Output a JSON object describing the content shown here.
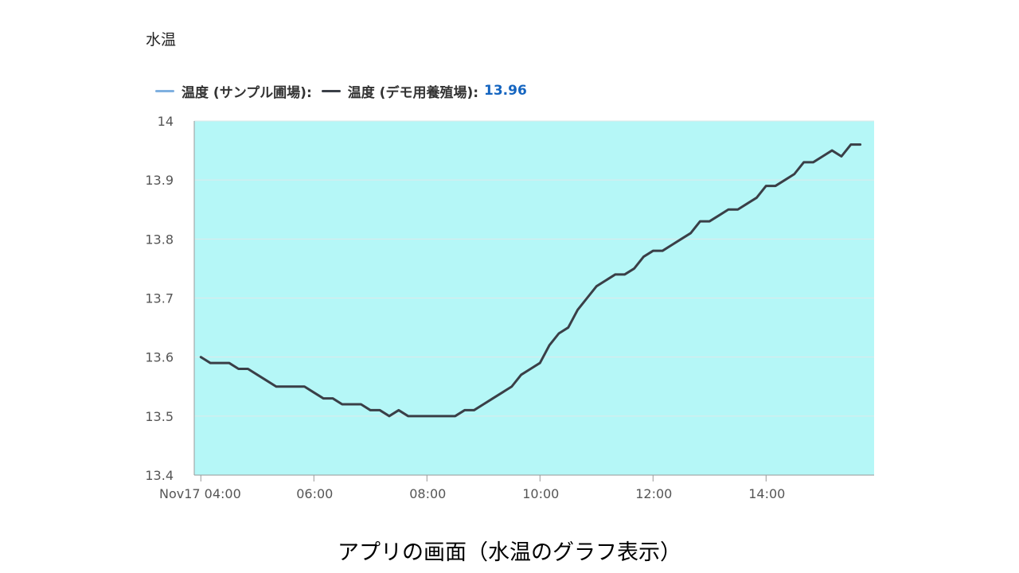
{
  "panel": {
    "title": "水温"
  },
  "legend": {
    "items": [
      {
        "label": "温度 (サンプル圃場):",
        "color": "#7fb0e0"
      },
      {
        "label": "温度 (デモ用養殖場):",
        "color": "#3a3f47",
        "value": "13.96",
        "value_color": "#1565c0"
      }
    ]
  },
  "caption": "アプリの画面（水温のグラフ表示）",
  "chart_data": {
    "type": "line",
    "plot_background": "#b5f7f7",
    "grid": true,
    "legend_position": "top-left",
    "x_start": "04:00",
    "x_end": "15:55",
    "x_ticks": [
      {
        "t": "04:00",
        "label": "Nov17 04:00"
      },
      {
        "t": "06:00",
        "label": "06:00"
      },
      {
        "t": "08:00",
        "label": "08:00"
      },
      {
        "t": "10:00",
        "label": "10:00"
      },
      {
        "t": "12:00",
        "label": "12:00"
      },
      {
        "t": "14:00",
        "label": "14:00"
      }
    ],
    "ylim": [
      13.4,
      14
    ],
    "y_ticks": [
      "13.4",
      "13.5",
      "13.6",
      "13.7",
      "13.8",
      "13.9",
      "14"
    ],
    "series": [
      {
        "name": "温度 (デモ用養殖場)",
        "color": "#3a3f47",
        "points": [
          [
            "04:00",
            13.6
          ],
          [
            "04:10",
            13.59
          ],
          [
            "04:20",
            13.59
          ],
          [
            "04:30",
            13.59
          ],
          [
            "04:40",
            13.58
          ],
          [
            "04:50",
            13.58
          ],
          [
            "05:00",
            13.57
          ],
          [
            "05:10",
            13.56
          ],
          [
            "05:20",
            13.55
          ],
          [
            "05:30",
            13.55
          ],
          [
            "05:40",
            13.55
          ],
          [
            "05:50",
            13.55
          ],
          [
            "06:00",
            13.54
          ],
          [
            "06:10",
            13.53
          ],
          [
            "06:20",
            13.53
          ],
          [
            "06:30",
            13.52
          ],
          [
            "06:40",
            13.52
          ],
          [
            "06:50",
            13.52
          ],
          [
            "07:00",
            13.51
          ],
          [
            "07:10",
            13.51
          ],
          [
            "07:20",
            13.5
          ],
          [
            "07:30",
            13.51
          ],
          [
            "07:40",
            13.5
          ],
          [
            "07:50",
            13.5
          ],
          [
            "08:00",
            13.5
          ],
          [
            "08:10",
            13.5
          ],
          [
            "08:20",
            13.5
          ],
          [
            "08:30",
            13.5
          ],
          [
            "08:40",
            13.51
          ],
          [
            "08:50",
            13.51
          ],
          [
            "09:00",
            13.52
          ],
          [
            "09:10",
            13.53
          ],
          [
            "09:20",
            13.54
          ],
          [
            "09:30",
            13.55
          ],
          [
            "09:40",
            13.57
          ],
          [
            "09:50",
            13.58
          ],
          [
            "10:00",
            13.59
          ],
          [
            "10:10",
            13.62
          ],
          [
            "10:20",
            13.64
          ],
          [
            "10:30",
            13.65
          ],
          [
            "10:40",
            13.68
          ],
          [
            "10:50",
            13.7
          ],
          [
            "11:00",
            13.72
          ],
          [
            "11:10",
            13.73
          ],
          [
            "11:20",
            13.74
          ],
          [
            "11:30",
            13.74
          ],
          [
            "11:40",
            13.75
          ],
          [
            "11:50",
            13.77
          ],
          [
            "12:00",
            13.78
          ],
          [
            "12:10",
            13.78
          ],
          [
            "12:20",
            13.79
          ],
          [
            "12:30",
            13.8
          ],
          [
            "12:40",
            13.81
          ],
          [
            "12:50",
            13.83
          ],
          [
            "13:00",
            13.83
          ],
          [
            "13:10",
            13.84
          ],
          [
            "13:20",
            13.85
          ],
          [
            "13:30",
            13.85
          ],
          [
            "13:40",
            13.86
          ],
          [
            "13:50",
            13.87
          ],
          [
            "14:00",
            13.89
          ],
          [
            "14:10",
            13.89
          ],
          [
            "14:20",
            13.9
          ],
          [
            "14:30",
            13.91
          ],
          [
            "14:40",
            13.93
          ],
          [
            "14:50",
            13.93
          ],
          [
            "15:00",
            13.94
          ],
          [
            "15:10",
            13.95
          ],
          [
            "15:20",
            13.94
          ],
          [
            "15:30",
            13.96
          ],
          [
            "15:40",
            13.96
          ]
        ]
      }
    ]
  }
}
